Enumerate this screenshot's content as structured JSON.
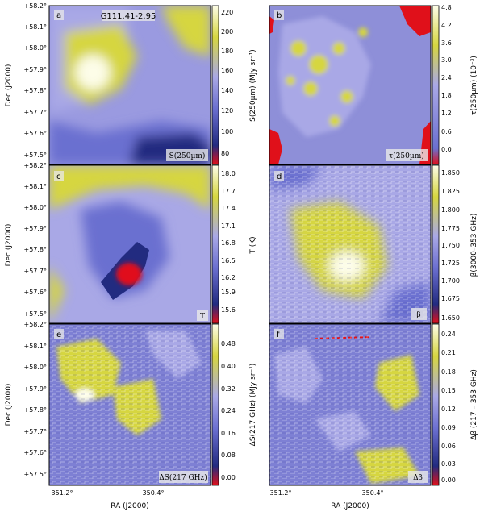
{
  "figure": {
    "source_name": "G111.41-2.95",
    "ra_ticks": [
      "351.2°",
      "350.4°"
    ],
    "dec_ticks": [
      "+58.2°",
      "+58.1°",
      "+58.0°",
      "+57.9°",
      "+57.8°",
      "+57.7°",
      "+57.6°",
      "+57.5°"
    ],
    "x_label": "RA (J2000)",
    "y_label": "Dec (J2000)",
    "palette": {
      "white": "#fdfde8",
      "yellow": "#d6d640",
      "lavender": "#a9a8e6",
      "blue": "#6b6fd0",
      "dark_blue": "#222b80",
      "red": "#e0101a"
    }
  },
  "panels": [
    {
      "id": "a",
      "badge": "S(250µm)",
      "cbar_label": "S(250µm) (MJy sr⁻¹)",
      "cbar_ticks": [
        "220",
        "200",
        "180",
        "160",
        "140",
        "120",
        "100",
        "80"
      ]
    },
    {
      "id": "b",
      "badge": "τ(250µm)",
      "cbar_label": "τ(250µm) (10⁻³)",
      "cbar_ticks": [
        "4.8",
        "4.2",
        "3.6",
        "3.0",
        "2.4",
        "1.8",
        "1.2",
        "0.6",
        "0.0"
      ]
    },
    {
      "id": "c",
      "badge": "T",
      "cbar_label": "T (K)",
      "cbar_ticks": [
        "18.0",
        "17.7",
        "17.4",
        "17.1",
        "16.8",
        "16.5",
        "16.2",
        "15.9",
        "15.6"
      ]
    },
    {
      "id": "d",
      "badge": "β",
      "cbar_label": "β(3000–353 GHz)",
      "cbar_ticks": [
        "1.850",
        "1.825",
        "1.800",
        "1.775",
        "1.750",
        "1.725",
        "1.700",
        "1.675",
        "1.650"
      ]
    },
    {
      "id": "e",
      "badge": "ΔS(217 GHz)",
      "cbar_label": "ΔS(217 GHz) (MJy sr⁻¹)",
      "cbar_ticks": [
        "0.48",
        "0.40",
        "0.32",
        "0.24",
        "0.16",
        "0.08",
        "0.00"
      ]
    },
    {
      "id": "f",
      "badge": "Δβ",
      "cbar_label": "Δβ (217 – 353 GHz)",
      "cbar_ticks": [
        "0.24",
        "0.21",
        "0.18",
        "0.15",
        "0.12",
        "0.09",
        "0.06",
        "0.03",
        "0.00"
      ]
    }
  ]
}
